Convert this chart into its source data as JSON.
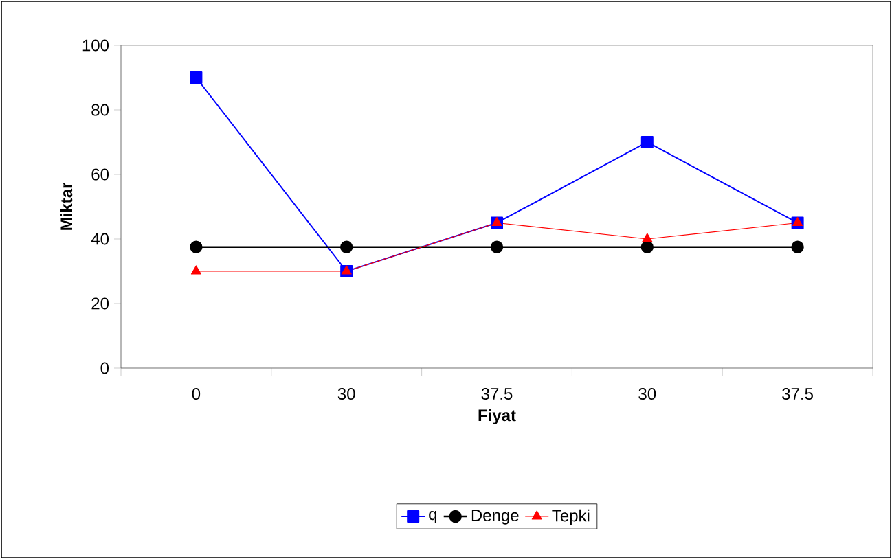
{
  "chart_data": {
    "type": "line",
    "xlabel": "Fiyat",
    "ylabel": "Miktar",
    "categories": [
      "0",
      "30",
      "37.5",
      "30",
      "37.5"
    ],
    "series": [
      {
        "name": "q",
        "color": "#0000ff",
        "marker": "square",
        "values": [
          90,
          30,
          45,
          70,
          45
        ]
      },
      {
        "name": "Denge",
        "color": "#000000",
        "marker": "circle",
        "values": [
          37.5,
          37.5,
          37.5,
          37.5,
          37.5
        ]
      },
      {
        "name": "Tepki",
        "color": "#ff0000",
        "marker": "triangle",
        "values": [
          30,
          30,
          45,
          40,
          45
        ]
      }
    ],
    "ylim": [
      0,
      100
    ],
    "yticks": [
      0,
      20,
      40,
      60,
      80,
      100
    ],
    "grid": false,
    "legend": "bottom",
    "line_style": "solid"
  }
}
